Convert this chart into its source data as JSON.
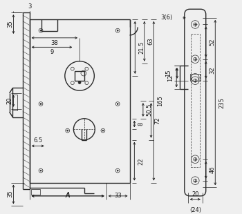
{
  "bg_color": "#efefef",
  "line_color": "#2a2a2a",
  "dim_color": "#1a1a1a",
  "fig_width": 3.5,
  "fig_height": 3.1,
  "dpi": 100,
  "annotations": {
    "dim_35_top": "35",
    "dim_3": "3",
    "dim_38": "38",
    "dim_9": "9",
    "dim_21_5": "21.5",
    "dim_63": "63",
    "dim_165": "165",
    "dim_20": "20",
    "dim_6_5": "6.5",
    "dim_8": "8",
    "dim_50_5": "50.5",
    "dim_72": "72",
    "dim_22": "22",
    "dim_35_bot": "35",
    "dim_A": "A",
    "dim_33": "33",
    "right_3_6": "3(6)",
    "right_52": "52",
    "right_32": "32",
    "right_12": "12",
    "right_235": "235",
    "right_15": "15",
    "right_46": "46",
    "right_20": "20",
    "right_24": "(24)"
  }
}
